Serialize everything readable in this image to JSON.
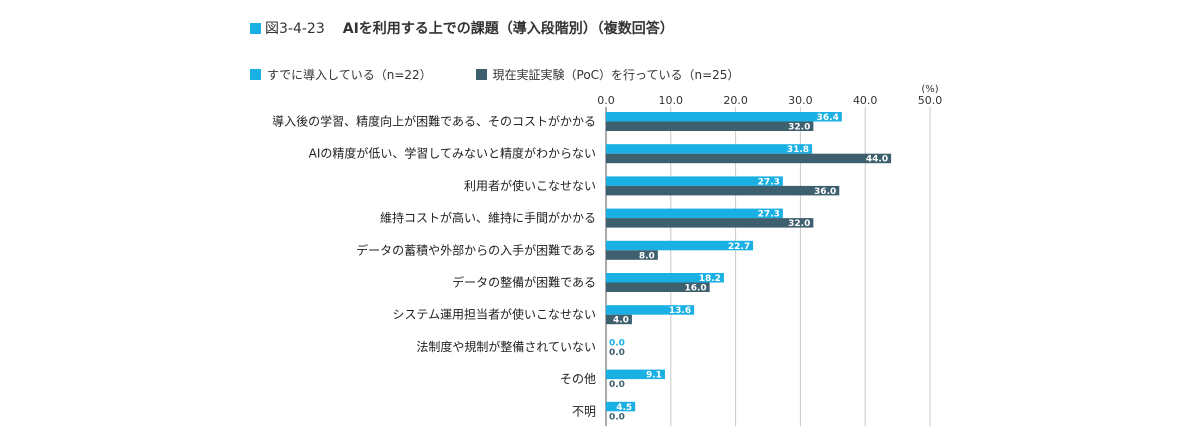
{
  "figure": {
    "number": "図3-4-23",
    "title": "AIを利用する上での課題（導入段階別）（複数回答）"
  },
  "colors": {
    "series_a": "#1ab0e3",
    "series_b": "#3e5f6e",
    "grid": "#c8c8c8",
    "axis": "#555555"
  },
  "chart_data": {
    "type": "bar",
    "orientation": "horizontal",
    "unit_label": "(%)",
    "xlim": [
      0,
      50
    ],
    "ticks": [
      "0.0",
      "10.0",
      "20.0",
      "30.0",
      "40.0",
      "50.0"
    ],
    "tick_values": [
      0,
      10,
      20,
      30,
      40,
      50
    ],
    "grid": true,
    "legend_position": "top-left",
    "categories": [
      "導入後の学習、精度向上が困難である、そのコストがかかる",
      "AIの精度が低い、学習してみないと精度がわからない",
      "利用者が使いこなせない",
      "維持コストが高い、維持に手間がかかる",
      "データの蓄積や外部からの入手が困難である",
      "データの整備が困難である",
      "システム運用担当者が使いこなせない",
      "法制度や規制が整備されていない",
      "その他",
      "不明"
    ],
    "series": [
      {
        "name": "すでに導入している（n=22）",
        "values": [
          36.4,
          31.8,
          27.3,
          27.3,
          22.7,
          18.2,
          13.6,
          0.0,
          9.1,
          4.5
        ],
        "labels": [
          "36.4",
          "31.8",
          "27.3",
          "27.3",
          "22.7",
          "18.2",
          "13.6",
          "0.0",
          "9.1",
          "4.5"
        ]
      },
      {
        "name": "現在実証実験（PoC）を行っている（n=25）",
        "values": [
          32.0,
          44.0,
          36.0,
          32.0,
          8.0,
          16.0,
          4.0,
          0.0,
          0.0,
          0.0
        ],
        "labels": [
          "32.0",
          "44.0",
          "36.0",
          "32.0",
          "8.0",
          "16.0",
          "4.0",
          "0.0",
          "0.0",
          "0.0"
        ]
      }
    ]
  }
}
